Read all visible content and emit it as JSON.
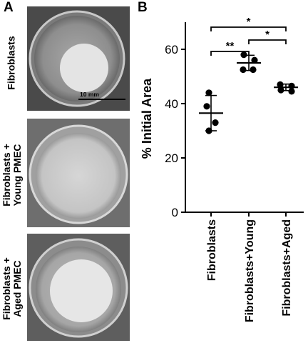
{
  "panels": {
    "a": {
      "letter": "A",
      "rows": [
        {
          "label_lines": [
            "Fibroblasts"
          ]
        },
        {
          "label_lines": [
            "Fibroblasts +",
            "Young PMEC"
          ]
        },
        {
          "label_lines": [
            "Fibroblasts +",
            "Aged PMEC"
          ]
        }
      ],
      "scale_bar_label": "10 mm"
    },
    "b": {
      "letter": "B"
    }
  },
  "chart_data": {
    "type": "scatter",
    "ylabel": "% Initial Area",
    "xlabel": "",
    "ylim": [
      0,
      70
    ],
    "yticks": [
      0,
      20,
      40,
      60
    ],
    "categories": [
      "Fibroblasts",
      "Fibroblasts+Young",
      "Fibroblasts+Aged"
    ],
    "points": [
      [
        44,
        39,
        33,
        30
      ],
      [
        58,
        56,
        52.5,
        52.5
      ],
      [
        47,
        46.5,
        45,
        44.5
      ]
    ],
    "means": [
      36.5,
      55,
      46
    ],
    "sd": [
      6.5,
      2.8,
      1.2
    ],
    "significance": [
      {
        "from": 0,
        "to": 1,
        "label": "**"
      },
      {
        "from": 1,
        "to": 2,
        "label": "*"
      },
      {
        "from": 0,
        "to": 2,
        "label": "*"
      }
    ],
    "grid": false
  }
}
